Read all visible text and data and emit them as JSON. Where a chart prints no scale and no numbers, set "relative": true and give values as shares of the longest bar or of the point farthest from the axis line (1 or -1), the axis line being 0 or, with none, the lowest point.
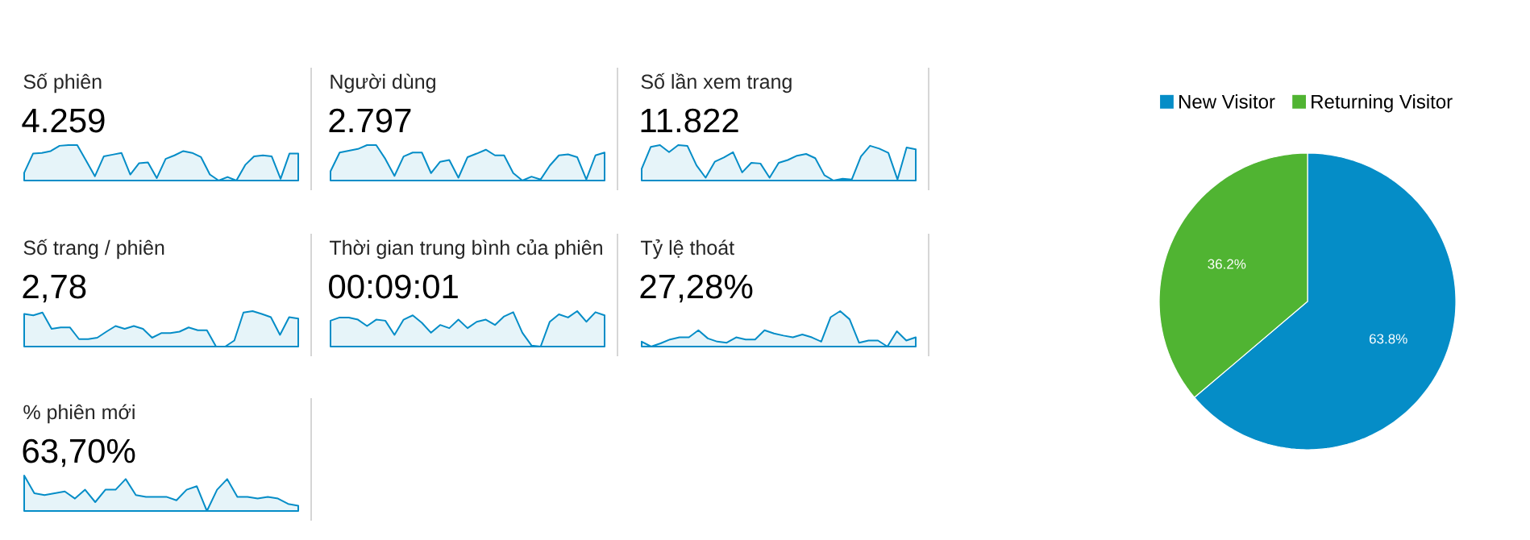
{
  "chart_data": [
    {
      "type": "area",
      "title": "Số phiên",
      "subtitle": "4.259",
      "relative": true,
      "color": "#058dc7",
      "categories": [
        null,
        null,
        null,
        null,
        null,
        null,
        null,
        null,
        null,
        null,
        null,
        null,
        null,
        null,
        null,
        null,
        null,
        null,
        null,
        null,
        null,
        null,
        null,
        null,
        null,
        null,
        null,
        null,
        null,
        null,
        null,
        null
      ],
      "values": [
        0.22,
        0.76,
        0.78,
        0.83,
        0.98,
        1,
        1,
        0.56,
        0.12,
        0.68,
        0.73,
        0.78,
        0.17,
        0.49,
        0.51,
        0.07,
        0.61,
        0.71,
        0.83,
        0.78,
        0.66,
        0.17,
        0,
        0.1,
        0,
        0.44,
        0.68,
        0.71,
        0.68,
        0.05,
        0.76,
        0.76
      ]
    },
    {
      "type": "area",
      "title": "Người dùng",
      "subtitle": "2.797",
      "relative": true,
      "color": "#058dc7",
      "categories": [
        null,
        null,
        null,
        null,
        null,
        null,
        null,
        null,
        null,
        null,
        null,
        null,
        null,
        null,
        null,
        null,
        null,
        null,
        null,
        null,
        null,
        null,
        null,
        null,
        null,
        null,
        null,
        null,
        null,
        null,
        null
      ],
      "values": [
        0.26,
        0.79,
        0.84,
        0.89,
        1,
        1,
        0.61,
        0.13,
        0.68,
        0.79,
        0.79,
        0.21,
        0.53,
        0.58,
        0.08,
        0.66,
        0.76,
        0.87,
        0.71,
        0.71,
        0.21,
        0,
        0.11,
        0.03,
        0.42,
        0.71,
        0.74,
        0.66,
        0.03,
        0.71,
        0.79
      ]
    },
    {
      "type": "area",
      "title": "Số lần xem trang",
      "subtitle": "11.822",
      "relative": true,
      "color": "#058dc7",
      "categories": [
        null,
        null,
        null,
        null,
        null,
        null,
        null,
        null,
        null,
        null,
        null,
        null,
        null,
        null,
        null,
        null,
        null,
        null,
        null,
        null,
        null,
        null,
        null,
        null,
        null,
        null,
        null,
        null,
        null,
        null,
        null
      ],
      "values": [
        0.33,
        0.95,
        1,
        0.8,
        1,
        0.98,
        0.43,
        0.08,
        0.53,
        0.65,
        0.8,
        0.23,
        0.5,
        0.48,
        0.08,
        0.5,
        0.58,
        0.7,
        0.75,
        0.63,
        0.15,
        0,
        0.05,
        0.03,
        0.68,
        0.98,
        0.9,
        0.78,
        0.03,
        0.93,
        0.88
      ]
    },
    {
      "type": "area",
      "title": "Số trang / phiên",
      "subtitle": "2,78",
      "relative": true,
      "color": "#058dc7",
      "categories": [
        null,
        null,
        null,
        null,
        null,
        null,
        null,
        null,
        null,
        null,
        null,
        null,
        null,
        null,
        null,
        null,
        null,
        null,
        null,
        null,
        null,
        null,
        null,
        null,
        null,
        null,
        null,
        null,
        null,
        null,
        null
      ],
      "values": [
        0.92,
        0.88,
        0.96,
        0.5,
        0.54,
        0.54,
        0.21,
        0.21,
        0.25,
        0.42,
        0.58,
        0.5,
        0.58,
        0.5,
        0.25,
        0.38,
        0.38,
        0.42,
        0.54,
        0.46,
        0.46,
        0,
        0,
        0.17,
        0.96,
        1,
        0.92,
        0.83,
        0.33,
        0.83,
        0.79
      ]
    },
    {
      "type": "area",
      "title": "Thời gian trung bình của phiên",
      "subtitle": "00:09:01",
      "relative": true,
      "color": "#058dc7",
      "categories": [
        null,
        null,
        null,
        null,
        null,
        null,
        null,
        null,
        null,
        null,
        null,
        null,
        null,
        null,
        null,
        null,
        null,
        null,
        null,
        null,
        null,
        null,
        null,
        null,
        null,
        null,
        null,
        null,
        null,
        null,
        null
      ],
      "values": [
        0.73,
        0.82,
        0.82,
        0.76,
        0.58,
        0.76,
        0.73,
        0.33,
        0.76,
        0.88,
        0.67,
        0.39,
        0.61,
        0.52,
        0.76,
        0.52,
        0.7,
        0.76,
        0.61,
        0.85,
        0.97,
        0.39,
        0.03,
        0,
        0.7,
        0.91,
        0.82,
        1,
        0.7,
        0.97,
        0.88
      ]
    },
    {
      "type": "area",
      "title": "Tỷ lệ thoát",
      "subtitle": "27,28%",
      "relative": true,
      "color": "#058dc7",
      "categories": [
        null,
        null,
        null,
        null,
        null,
        null,
        null,
        null,
        null,
        null,
        null,
        null,
        null,
        null,
        null,
        null,
        null,
        null,
        null,
        null,
        null,
        null,
        null,
        null,
        null,
        null,
        null,
        null,
        null,
        null
      ],
      "values": [
        0.14,
        0,
        0.09,
        0.2,
        0.26,
        0.26,
        0.46,
        0.23,
        0.14,
        0.11,
        0.26,
        0.2,
        0.2,
        0.46,
        0.37,
        0.31,
        0.26,
        0.34,
        0.26,
        0.14,
        0.83,
        1,
        0.77,
        0.11,
        0.17,
        0.17,
        0,
        0.43,
        0.17,
        0.26
      ]
    },
    {
      "type": "area",
      "title": "% phiên mới",
      "subtitle": "63,70%",
      "relative": true,
      "color": "#058dc7",
      "categories": [
        null,
        null,
        null,
        null,
        null,
        null,
        null,
        null,
        null,
        null,
        null,
        null,
        null,
        null,
        null,
        null,
        null,
        null,
        null,
        null,
        null,
        null,
        null,
        null,
        null,
        null,
        null,
        null
      ],
      "values": [
        1,
        0.5,
        0.45,
        0.5,
        0.55,
        0.35,
        0.6,
        0.25,
        0.6,
        0.6,
        0.9,
        0.45,
        0.4,
        0.4,
        0.4,
        0.3,
        0.6,
        0.7,
        0,
        0.6,
        0.9,
        0.4,
        0.4,
        0.35,
        0.4,
        0.35,
        0.2,
        0.15
      ]
    },
    {
      "type": "pie",
      "categories": [
        "New Visitor",
        "Returning Visitor"
      ],
      "values": [
        63.8,
        36.2
      ],
      "colors": [
        "#058dc7",
        "#50b432"
      ],
      "value_labels": [
        "63.8%",
        "36.2%"
      ],
      "legend": "top"
    }
  ]
}
